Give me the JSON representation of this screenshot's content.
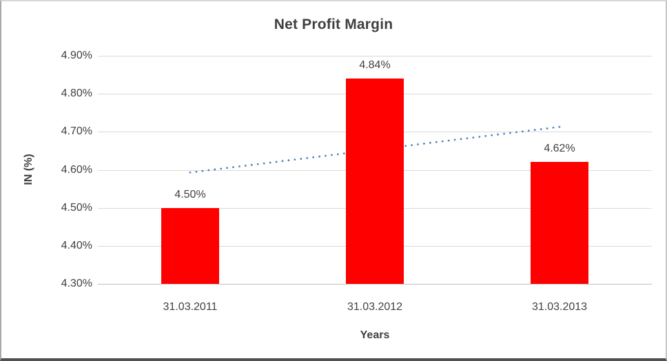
{
  "chart_data": {
    "type": "bar",
    "title": "Net Profit Margin",
    "categories": [
      "31.03.2011",
      "31.03.2012",
      "31.03.2013"
    ],
    "series": [
      {
        "name": "Net Profit Margin",
        "values": [
          4.5,
          4.84,
          4.62
        ]
      }
    ],
    "data_labels": [
      "4.50%",
      "4.84%",
      "4.62%"
    ],
    "xlabel": "Years",
    "ylabel": "IN (%)",
    "ylim": [
      4.3,
      4.9
    ],
    "ytick_values": [
      4.9,
      4.8,
      4.7,
      4.6,
      4.5,
      4.4,
      4.3
    ],
    "ytick_labels": [
      "4.90%",
      "4.80%",
      "4.70%",
      "4.60%",
      "4.50%",
      "4.40%",
      "4.30%"
    ],
    "grid": true,
    "legend": "none",
    "trendline": {
      "shape": "linear",
      "dash": "round-dot",
      "start_value": 4.593,
      "end_value": 4.713,
      "spans": "first-to-last-category",
      "drawn_behind_bars": true
    },
    "colors": {
      "bar": "#FF0000",
      "trendline": "#4E81BD",
      "gridline": "#D9D9D9",
      "axis_line": "#BFBFBF",
      "text": "#404040",
      "title_text": "#3F3F3F"
    }
  }
}
